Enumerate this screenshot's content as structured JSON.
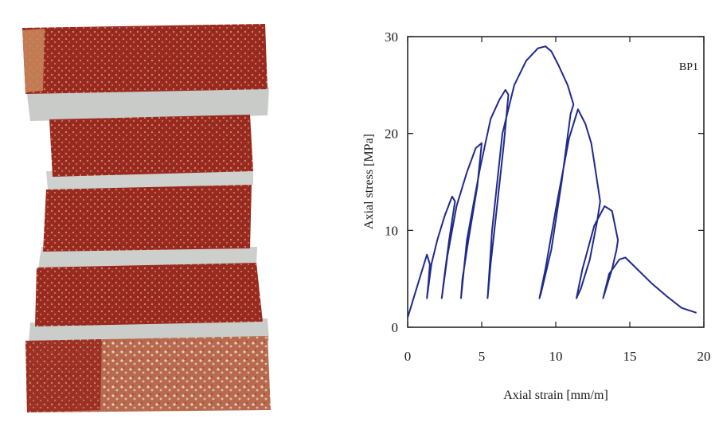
{
  "photo": {
    "subject": "brick-prism-specimen"
  },
  "chart_data": {
    "type": "line",
    "title": "",
    "xlabel": "Axial strain [mm/m]",
    "ylabel": "Axial stress [MPa]",
    "xlim": [
      0,
      20
    ],
    "ylim": [
      0,
      30
    ],
    "xticks": [
      "0",
      "5",
      "10",
      "15",
      "20"
    ],
    "yticks": [
      "0",
      "10",
      "20",
      "30"
    ],
    "grid": false,
    "annotation": "BP1",
    "series": [
      {
        "color": "#1e2a8c",
        "x": [
          0,
          0.3,
          0.7,
          1.0,
          1.3,
          1.5,
          1.4,
          1.3,
          1.6,
          2.0,
          2.5,
          3.0,
          3.2,
          2.8,
          2.5,
          2.3,
          2.7,
          3.3,
          4.0,
          4.6,
          5.0,
          4.7,
          4.1,
          3.7,
          3.6,
          4.0,
          4.9,
          5.6,
          6.2,
          6.6,
          6.8,
          6.5,
          6.0,
          5.6,
          5.4,
          5.7,
          6.4,
          7.2,
          8.0,
          8.8,
          9.3,
          9.7,
          10.2,
          10.8,
          11.2,
          11.0,
          10.4,
          9.7,
          9.0,
          8.9,
          9.3,
          10.1,
          10.9,
          11.5,
          12.0,
          12.4,
          12.6,
          12.8,
          13.0,
          12.8,
          12.3,
          11.7,
          11.4,
          11.8,
          12.6,
          13.3,
          13.8,
          14.0,
          14.2,
          14.1,
          13.8,
          13.4,
          13.2,
          13.6,
          14.3,
          14.7,
          15.5,
          16.5,
          17.5,
          18.5,
          19.5
        ],
        "y": [
          1.0,
          2.5,
          4.5,
          6.0,
          7.5,
          6.5,
          4.5,
          3.0,
          6.5,
          9.0,
          11.5,
          13.5,
          13.0,
          9.0,
          5.5,
          3.0,
          7.5,
          12.5,
          16.0,
          18.5,
          19.0,
          14.5,
          9.0,
          5.0,
          3.0,
          9.0,
          16.5,
          21.5,
          23.5,
          24.5,
          24.0,
          19.0,
          12.0,
          6.5,
          3.0,
          10.0,
          20.0,
          25.0,
          27.5,
          28.8,
          29.0,
          28.5,
          27.0,
          25.0,
          23.0,
          22.0,
          15.0,
          8.0,
          3.5,
          3.0,
          6.0,
          13.0,
          19.5,
          22.5,
          21.0,
          19.0,
          17.0,
          15.0,
          13.0,
          11.0,
          7.0,
          4.0,
          3.0,
          6.0,
          10.5,
          12.5,
          12.0,
          10.5,
          9.0,
          8.0,
          6.0,
          4.0,
          3.0,
          5.5,
          7.0,
          7.2,
          6.0,
          4.5,
          3.2,
          2.0,
          1.5
        ]
      }
    ]
  }
}
